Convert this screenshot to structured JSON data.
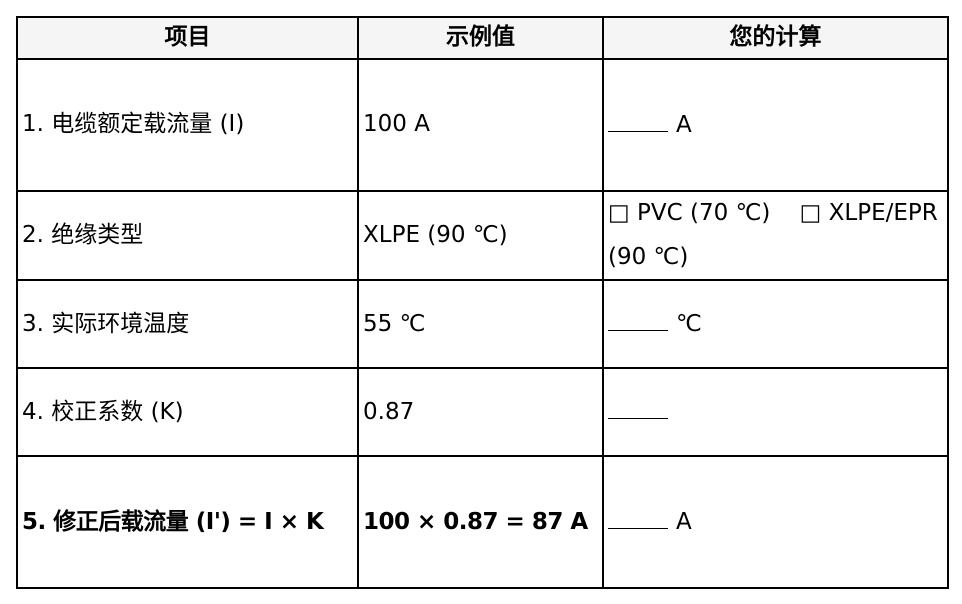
{
  "headers": [
    "项目",
    "示例值",
    "您的计算"
  ],
  "rows": [
    {
      "item": "1. 电缆额定载流量 (I)",
      "example": "100 A",
      "calc_unit": "A"
    },
    {
      "item": "2. 绝缘类型",
      "example": "XLPE (90 ℃)",
      "options": [
        "□ PVC (70 ℃)",
        "□ XLPE/EPR (90 ℃)"
      ]
    },
    {
      "item": "3. 实际环境温度",
      "example": "55 ℃",
      "calc_unit": "℃"
    },
    {
      "item": "4. 校正系数 (K)",
      "example": "0.87",
      "calc_unit": ""
    },
    {
      "item": "5. 修正后载流量 (I') = I × K",
      "example": "100 × 0.87 = 87 A",
      "calc_unit": "A"
    }
  ]
}
